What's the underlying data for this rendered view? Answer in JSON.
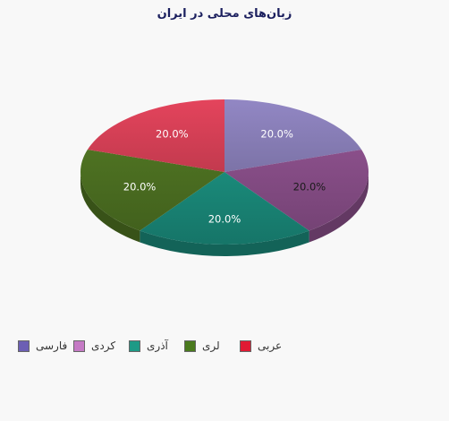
{
  "chart_data": {
    "type": "pie",
    "title": "زبان‌های محلی در ایران",
    "three_d": true,
    "categories": [
      "فارسی",
      "کردی",
      "آذری",
      "لری",
      "عربی"
    ],
    "values": [
      20,
      20,
      20,
      20,
      20
    ],
    "data_labels": [
      "20.0%",
      "20.0%",
      "20.0%",
      "20.0%",
      "20.0%"
    ],
    "colors": [
      "#9287c4",
      "#8a4f8a",
      "#1a8a7a",
      "#4e7222",
      "#e4445c"
    ],
    "legend_colors": [
      "#6c5fb4",
      "#c57ac5",
      "#1d9a86",
      "#4a7a1e",
      "#e01a33"
    ],
    "label_colors": [
      "#ffffff",
      "#1a1a1a",
      "#ffffff",
      "#ffffff",
      "#ffffff"
    ],
    "legend_position": "bottom"
  }
}
